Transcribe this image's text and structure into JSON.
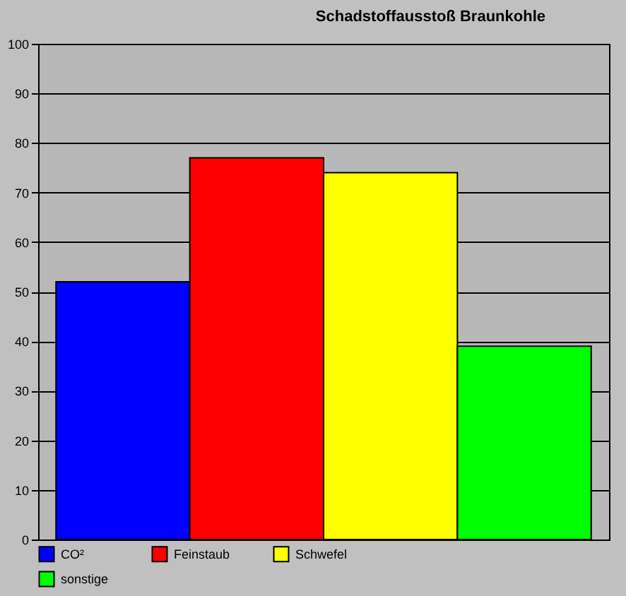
{
  "chart_data": {
    "type": "bar",
    "title": "Schadstoffausstoß Braunkohle",
    "categories": [
      null
    ],
    "series": [
      {
        "name": "CO²",
        "color": "#0000ff",
        "values": [
          52
        ]
      },
      {
        "name": "Feinstaub",
        "color": "#ff0000",
        "values": [
          77
        ]
      },
      {
        "name": "Schwefel",
        "color": "#ffff00",
        "values": [
          74
        ]
      },
      {
        "name": "sonstige",
        "color": "#00ff00",
        "values": [
          39
        ]
      }
    ],
    "ylim": [
      0,
      100
    ],
    "yticks": [
      0,
      10,
      20,
      30,
      40,
      50,
      60,
      70,
      80,
      90,
      100
    ],
    "grid": "y",
    "legend": "bottom",
    "tick_labels": "y"
  }
}
